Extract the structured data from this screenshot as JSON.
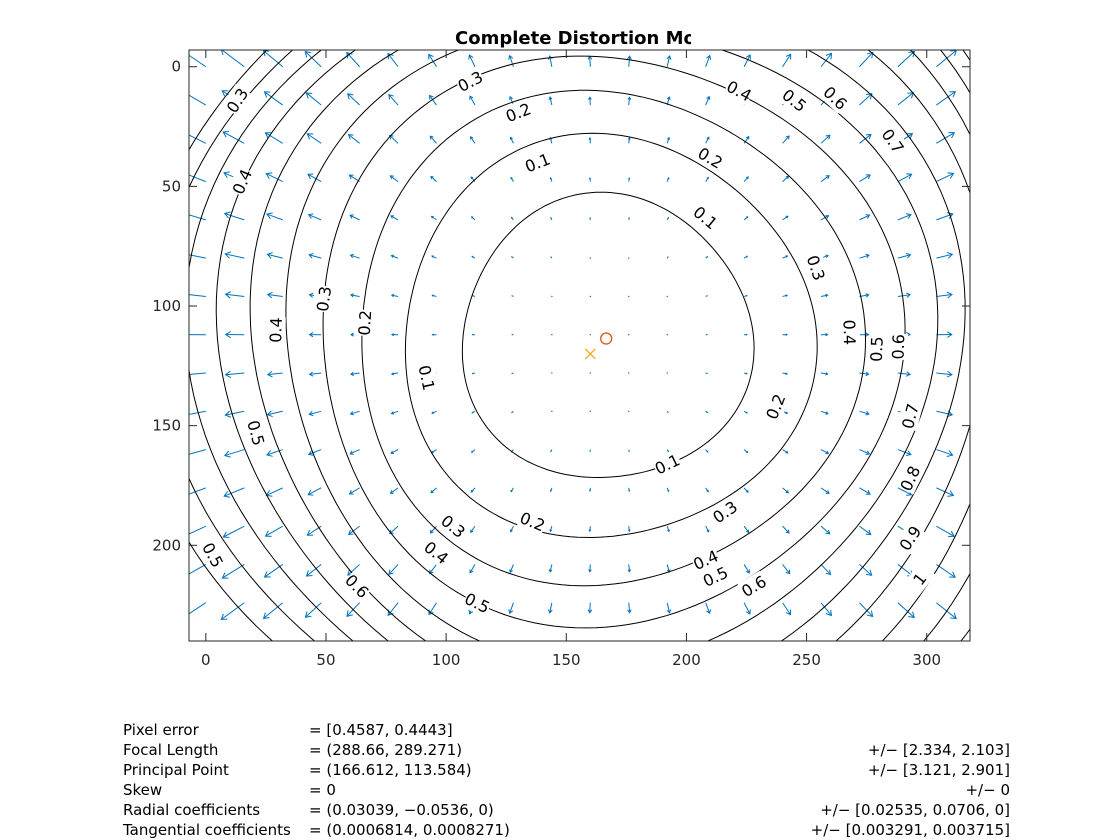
{
  "chart_data": {
    "type": "contour",
    "title": "Complete Distortion Model",
    "xlabel": "",
    "ylabel": "",
    "xlim": [
      -7,
      318
    ],
    "ylim": [
      240,
      -7
    ],
    "y_reversed": true,
    "xticks": [
      0,
      50,
      100,
      150,
      200,
      250,
      300
    ],
    "yticks": [
      0,
      50,
      100,
      150,
      200
    ],
    "grid": false,
    "principal_point": {
      "x": 166.612,
      "y": 113.584,
      "marker": "circle"
    },
    "image_center": {
      "x": 160,
      "y": 120,
      "marker": "cross"
    },
    "distortion_field": {
      "center": [
        166.6,
        113.6
      ],
      "grid_step": 16,
      "rmax_at_corner": 1.0,
      "levels": [
        0.1,
        0.2,
        0.3,
        0.4,
        0.5,
        0.6,
        0.7,
        0.8,
        0.9,
        1
      ]
    },
    "contour_labels": [
      {
        "text": "0.3",
        "x": 110,
        "y": 6
      },
      {
        "text": "0.2",
        "x": 130,
        "y": 19
      },
      {
        "text": "0.1",
        "x": 138,
        "y": 40
      },
      {
        "text": "0.4",
        "x": 222,
        "y": 10
      },
      {
        "text": "0.5",
        "x": 245,
        "y": 14
      },
      {
        "text": "0.6",
        "x": 262,
        "y": 13
      },
      {
        "text": "0.7",
        "x": 286,
        "y": 31
      },
      {
        "text": "0.2",
        "x": 210,
        "y": 38
      },
      {
        "text": "0.1",
        "x": 208,
        "y": 63
      },
      {
        "text": "0.3",
        "x": 254,
        "y": 84
      },
      {
        "text": "0.3",
        "x": 13,
        "y": 14
      },
      {
        "text": "0.4",
        "x": 15,
        "y": 48
      },
      {
        "text": "0.3",
        "x": 49,
        "y": 97
      },
      {
        "text": "0.2",
        "x": 66,
        "y": 107
      },
      {
        "text": "0.4",
        "x": 29,
        "y": 110
      },
      {
        "text": "0.4",
        "x": 268,
        "y": 111
      },
      {
        "text": "0.5",
        "x": 279,
        "y": 118
      },
      {
        "text": "0.6",
        "x": 288,
        "y": 117
      },
      {
        "text": "0.1",
        "x": 92,
        "y": 130
      },
      {
        "text": "0.5",
        "x": 21,
        "y": 153
      },
      {
        "text": "0.7",
        "x": 293,
        "y": 146
      },
      {
        "text": "0.2",
        "x": 237,
        "y": 142
      },
      {
        "text": "0.1",
        "x": 192,
        "y": 166
      },
      {
        "text": "0.8",
        "x": 293,
        "y": 172
      },
      {
        "text": "0.3",
        "x": 216,
        "y": 186
      },
      {
        "text": "0.3",
        "x": 103,
        "y": 192
      },
      {
        "text": "0.2",
        "x": 136,
        "y": 190
      },
      {
        "text": "0.4",
        "x": 96,
        "y": 203
      },
      {
        "text": "0.9",
        "x": 293,
        "y": 197
      },
      {
        "text": "0.5",
        "x": 3,
        "y": 204
      },
      {
        "text": "0.4",
        "x": 208,
        "y": 206
      },
      {
        "text": "0.6",
        "x": 63,
        "y": 217
      },
      {
        "text": "0.5",
        "x": 212,
        "y": 213
      },
      {
        "text": "0.6",
        "x": 228,
        "y": 217
      },
      {
        "text": "0.5",
        "x": 113,
        "y": 224
      },
      {
        "text": "1",
        "x": 297,
        "y": 214
      }
    ]
  },
  "stats": [
    {
      "label": "Pixel error",
      "value": "= [0.4587, 0.4443]",
      "uncertainty": ""
    },
    {
      "label": "Focal Length",
      "value": "= (288.66, 289.271)",
      "uncertainty": "+/− [2.334, 2.103]"
    },
    {
      "label": "Principal Point",
      "value": "= (166.612, 113.584)",
      "uncertainty": "+/− [3.121, 2.901]"
    },
    {
      "label": "Skew",
      "value": "= 0",
      "uncertainty": "+/− 0"
    },
    {
      "label": "Radial coefficients",
      "value": "= (0.03039, −0.0536, 0)",
      "uncertainty": "+/− [0.02535, 0.0706, 0]"
    },
    {
      "label": "Tangential coefficients",
      "value": "= (0.0006814, 0.0008271)",
      "uncertainty": "+/− [0.003291, 0.003715]"
    }
  ],
  "colors": {
    "arrows": "#0072bd",
    "contours": "#000000",
    "principal_point": "#d95319",
    "image_center": "#edb120",
    "axes": "#262626"
  }
}
